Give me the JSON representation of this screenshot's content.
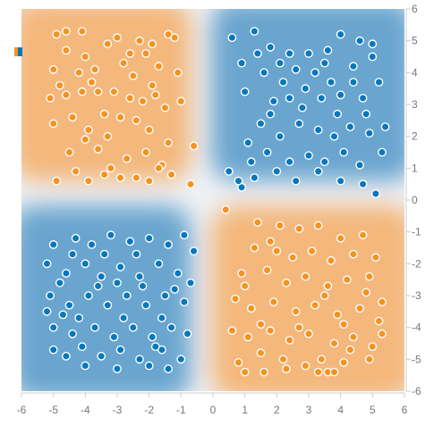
{
  "chart_data": {
    "type": "scatter",
    "title": "",
    "xlabel": "",
    "ylabel": "",
    "xlim": [
      -6,
      6
    ],
    "ylim": [
      -6,
      6
    ],
    "x_ticks": [
      "-6",
      "-5",
      "-4",
      "-3",
      "-2",
      "-1",
      "0",
      "1",
      "2",
      "3",
      "4",
      "5",
      "6"
    ],
    "y_ticks": [
      "6",
      "5",
      "4",
      "3",
      "2",
      "1",
      "0",
      "-1",
      "-2",
      "-3",
      "-4",
      "-5",
      "-6"
    ],
    "grid": false,
    "legend": "none",
    "colors": {
      "orange": "#f59322",
      "blue": "#0877bd"
    },
    "series": [
      {
        "color": "orange",
        "points": [
          [
            -4.9,
            5.2
          ],
          [
            -4.6,
            5.3
          ],
          [
            -4.1,
            5.3
          ],
          [
            -3.3,
            4.9
          ],
          [
            -2.8,
            4.3
          ],
          [
            -2.3,
            5.0
          ],
          [
            -1.9,
            4.9
          ],
          [
            -1.4,
            5.2
          ],
          [
            -1.2,
            5.1
          ],
          [
            -5.1,
            3.2
          ],
          [
            -5.0,
            4.1
          ],
          [
            -4.6,
            3.3
          ],
          [
            -4.4,
            2.6
          ],
          [
            -4.1,
            3.4
          ],
          [
            -3.8,
            3.7
          ],
          [
            -3.6,
            3.4
          ],
          [
            -3.4,
            2.7
          ],
          [
            -3.1,
            3.4
          ],
          [
            -2.9,
            2.6
          ],
          [
            -2.6,
            3.2
          ],
          [
            -2.4,
            2.5
          ],
          [
            -2.2,
            3.1
          ],
          [
            -1.8,
            3.3
          ],
          [
            -1.5,
            2.9
          ],
          [
            -1.0,
            3.1
          ],
          [
            -5.0,
            2.4
          ],
          [
            -4.5,
            1.5
          ],
          [
            -4.0,
            1.9
          ],
          [
            -3.6,
            1.6
          ],
          [
            -3.2,
            1.0
          ],
          [
            -2.7,
            1.3
          ],
          [
            -2.4,
            0.7
          ],
          [
            -2.1,
            1.5
          ],
          [
            -1.6,
            1.1
          ],
          [
            -1.3,
            0.8
          ],
          [
            -0.7,
            0.5
          ],
          [
            -4.9,
            0.6
          ],
          [
            -4.3,
            0.9
          ],
          [
            -3.9,
            0.6
          ],
          [
            -3.4,
            0.8
          ],
          [
            -2.9,
            0.7
          ],
          [
            -2.0,
            0.6
          ],
          [
            -1.7,
            1.0
          ],
          [
            -4.6,
            4.7
          ],
          [
            -4.0,
            4.5
          ],
          [
            -3.0,
            5.1
          ],
          [
            -2.1,
            4.6
          ],
          [
            -1.7,
            4.2
          ],
          [
            -3.7,
            4.1
          ],
          [
            -2.5,
            3.9
          ],
          [
            -1.1,
            4.0
          ],
          [
            -4.8,
            3.6
          ],
          [
            -3.3,
            2.0
          ],
          [
            -2.0,
            2.2
          ],
          [
            -1.4,
            1.8
          ],
          [
            -3.9,
            2.2
          ],
          [
            -0.6,
            1.7
          ],
          [
            -4.2,
            4.0
          ],
          [
            -2.6,
            4.6
          ],
          [
            -1.9,
            3.6
          ],
          [
            0.4,
            -0.3
          ],
          [
            1.4,
            -0.7
          ],
          [
            2.1,
            -0.8
          ],
          [
            2.7,
            -0.9
          ],
          [
            3.3,
            -0.8
          ],
          [
            4.0,
            -1.2
          ],
          [
            4.7,
            -1.1
          ],
          [
            1.3,
            -1.5
          ],
          [
            1.8,
            -1.3
          ],
          [
            2.5,
            -1.8
          ],
          [
            3.1,
            -1.6
          ],
          [
            3.7,
            -1.9
          ],
          [
            4.4,
            -1.7
          ],
          [
            5.1,
            -1.8
          ],
          [
            0.9,
            -2.3
          ],
          [
            1.7,
            -2.2
          ],
          [
            2.3,
            -2.6
          ],
          [
            2.9,
            -2.4
          ],
          [
            3.6,
            -2.7
          ],
          [
            4.2,
            -2.5
          ],
          [
            4.8,
            -2.9
          ],
          [
            0.7,
            -3.1
          ],
          [
            1.2,
            -3.4
          ],
          [
            1.9,
            -3.2
          ],
          [
            2.6,
            -3.5
          ],
          [
            3.2,
            -3.3
          ],
          [
            3.9,
            -3.6
          ],
          [
            4.6,
            -3.4
          ],
          [
            5.2,
            -3.8
          ],
          [
            0.6,
            -4.1
          ],
          [
            1.1,
            -4.3
          ],
          [
            1.8,
            -4.1
          ],
          [
            2.4,
            -4.4
          ],
          [
            3.0,
            -4.2
          ],
          [
            3.8,
            -4.5
          ],
          [
            4.4,
            -4.3
          ],
          [
            5.0,
            -4.6
          ],
          [
            0.8,
            -5.1
          ],
          [
            1.5,
            -4.8
          ],
          [
            2.2,
            -5.0
          ],
          [
            2.9,
            -5.2
          ],
          [
            3.4,
            -5.0
          ],
          [
            4.1,
            -5.1
          ],
          [
            4.9,
            -5.0
          ],
          [
            1.0,
            -5.4
          ],
          [
            1.6,
            -5.4
          ],
          [
            2.3,
            -5.3
          ],
          [
            3.6,
            -5.4
          ],
          [
            3.8,
            -5.4
          ],
          [
            4.3,
            -4.7
          ],
          [
            5.3,
            -3.2
          ],
          [
            5.3,
            -4.2
          ],
          [
            1.5,
            -3.9
          ],
          [
            2.7,
            -4.0
          ],
          [
            3.5,
            -3.0
          ],
          [
            4.1,
            -3.9
          ],
          [
            4.9,
            -2.4
          ],
          [
            2.0,
            -1.6
          ],
          [
            1.0,
            -2.7
          ],
          [
            3.3,
            -5.4
          ]
        ]
      },
      {
        "color": "blue",
        "points": [
          [
            0.6,
            5.1
          ],
          [
            1.3,
            5.3
          ],
          [
            1.8,
            4.8
          ],
          [
            2.4,
            4.6
          ],
          [
            3.0,
            4.6
          ],
          [
            3.6,
            4.7
          ],
          [
            4.0,
            5.2
          ],
          [
            4.6,
            5.0
          ],
          [
            0.9,
            4.3
          ],
          [
            1.6,
            4.0
          ],
          [
            2.1,
            4.3
          ],
          [
            2.6,
            4.1
          ],
          [
            3.2,
            4.0
          ],
          [
            3.7,
            3.7
          ],
          [
            4.4,
            4.2
          ],
          [
            5.0,
            4.5
          ],
          [
            1.0,
            3.4
          ],
          [
            1.9,
            3.1
          ],
          [
            2.4,
            3.2
          ],
          [
            2.9,
            3.5
          ],
          [
            3.4,
            3.2
          ],
          [
            4.0,
            3.3
          ],
          [
            4.7,
            3.2
          ],
          [
            5.2,
            3.7
          ],
          [
            1.5,
            2.4
          ],
          [
            2.1,
            2.0
          ],
          [
            2.7,
            2.4
          ],
          [
            3.3,
            2.2
          ],
          [
            3.8,
            2.0
          ],
          [
            4.3,
            2.3
          ],
          [
            4.9,
            2.1
          ],
          [
            5.4,
            2.3
          ],
          [
            1.1,
            1.8
          ],
          [
            1.7,
            1.5
          ],
          [
            2.4,
            1.2
          ],
          [
            3.0,
            1.4
          ],
          [
            3.5,
            1.2
          ],
          [
            4.1,
            1.5
          ],
          [
            4.6,
            1.1
          ],
          [
            5.3,
            1.5
          ],
          [
            0.5,
            0.9
          ],
          [
            0.9,
            0.4
          ],
          [
            1.3,
            0.7
          ],
          [
            2.0,
            0.9
          ],
          [
            2.6,
            0.6
          ],
          [
            3.3,
            0.9
          ],
          [
            4.0,
            0.6
          ],
          [
            4.7,
            0.5
          ],
          [
            5.1,
            0.2
          ],
          [
            1.2,
            1.2
          ],
          [
            2.8,
            2.9
          ],
          [
            4.4,
            3.7
          ],
          [
            1.4,
            4.6
          ],
          [
            3.5,
            4.3
          ],
          [
            4.8,
            2.7
          ],
          [
            0.8,
            0.6
          ],
          [
            2.2,
            3.7
          ],
          [
            3.9,
            2.7
          ],
          [
            5.0,
            4.9
          ],
          [
            1.8,
            2.7
          ],
          [
            -5.0,
            -1.4
          ],
          [
            -4.3,
            -1.2
          ],
          [
            -3.8,
            -1.4
          ],
          [
            -3.2,
            -1.1
          ],
          [
            -2.6,
            -1.3
          ],
          [
            -2.0,
            -1.2
          ],
          [
            -1.4,
            -1.4
          ],
          [
            -0.9,
            -1.1
          ],
          [
            -5.2,
            -2.0
          ],
          [
            -4.6,
            -2.3
          ],
          [
            -4.0,
            -2.0
          ],
          [
            -3.5,
            -2.4
          ],
          [
            -2.9,
            -2.1
          ],
          [
            -2.3,
            -2.4
          ],
          [
            -1.7,
            -2.0
          ],
          [
            -1.1,
            -2.3
          ],
          [
            -5.1,
            -3.0
          ],
          [
            -4.5,
            -3.3
          ],
          [
            -3.9,
            -3.0
          ],
          [
            -3.3,
            -3.3
          ],
          [
            -2.7,
            -3.0
          ],
          [
            -2.1,
            -3.3
          ],
          [
            -1.5,
            -3.0
          ],
          [
            -0.9,
            -3.2
          ],
          [
            -5.0,
            -4.0
          ],
          [
            -4.4,
            -4.2
          ],
          [
            -3.7,
            -4.0
          ],
          [
            -3.1,
            -4.3
          ],
          [
            -2.5,
            -4.0
          ],
          [
            -1.9,
            -4.3
          ],
          [
            -1.3,
            -4.0
          ],
          [
            -0.8,
            -4.2
          ],
          [
            -5.0,
            -4.7
          ],
          [
            -4.6,
            -4.9
          ],
          [
            -4.1,
            -4.6
          ],
          [
            -3.5,
            -4.9
          ],
          [
            -2.9,
            -4.7
          ],
          [
            -2.3,
            -5.0
          ],
          [
            -1.6,
            -4.7
          ],
          [
            -1.0,
            -5.0
          ],
          [
            -4.8,
            -2.6
          ],
          [
            -4.2,
            -3.7
          ],
          [
            -3.6,
            -2.7
          ],
          [
            -2.8,
            -3.7
          ],
          [
            -2.2,
            -2.7
          ],
          [
            -1.6,
            -3.7
          ],
          [
            -1.2,
            -2.8
          ],
          [
            -4.7,
            -3.6
          ],
          [
            -3.4,
            -1.7
          ],
          [
            -2.4,
            -1.7
          ],
          [
            -1.8,
            -4.6
          ],
          [
            -4.0,
            -5.2
          ],
          [
            -3.0,
            -5.3
          ],
          [
            -2.0,
            -5.2
          ],
          [
            -0.7,
            -2.6
          ],
          [
            -4.4,
            -1.7
          ],
          [
            -3.0,
            -2.6
          ],
          [
            -1.4,
            -5.3
          ],
          [
            -5.2,
            -3.5
          ],
          [
            -0.6,
            -1.6
          ]
        ]
      }
    ]
  }
}
